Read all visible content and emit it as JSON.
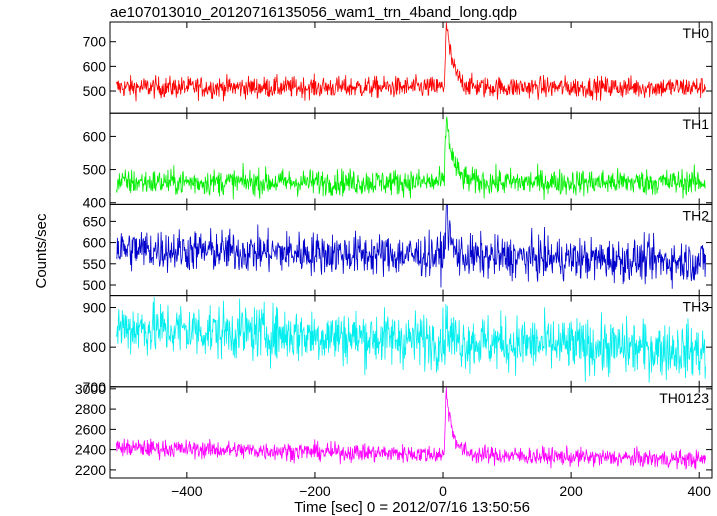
{
  "chart_data": {
    "type": "line",
    "title": "ae107013010_20120716135056_wam1_trn_4band_long.qdp",
    "xlabel": "Time [sec] 0 = 2012/07/16 13:50:56",
    "ylabel": "Counts/sec",
    "xlim": [
      -520,
      420
    ],
    "data_x_range": [
      -510,
      410
    ],
    "xticks": [
      -400,
      -200,
      0,
      200,
      400
    ],
    "grid": false,
    "legend": "none",
    "panels": [
      {
        "name": "TH0",
        "color": "#ff0000",
        "ylim": [
          410,
          780
        ],
        "yticks": [
          500,
          600,
          700
        ],
        "baseline": 515,
        "noise": 22,
        "peak": 780,
        "peak_time": 5,
        "decay_sec": 10
      },
      {
        "name": "TH1",
        "color": "#00ee00",
        "ylim": [
          395,
          670
        ],
        "yticks": [
          400,
          500,
          600
        ],
        "baseline": 462,
        "noise": 20,
        "peak": 665,
        "peak_time": 5,
        "decay_sec": 10
      },
      {
        "name": "TH2",
        "color": "#0000cc",
        "ylim": [
          475,
          690
        ],
        "yticks": [
          500,
          550,
          600,
          650
        ],
        "baseline_start": 585,
        "baseline_end": 555,
        "noise": 25,
        "peak": 690,
        "peak_time": 5,
        "decay_sec": 6
      },
      {
        "name": "TH3",
        "color": "#00eeee",
        "ylim": [
          700,
          930
        ],
        "yticks": [
          700,
          800,
          900
        ],
        "baseline_start": 850,
        "baseline_end": 790,
        "noise": 35,
        "peak": 860,
        "peak_time": 5,
        "decay_sec": 6
      },
      {
        "name": "TH0123",
        "color": "#ff00ff",
        "ylim": [
          2120,
          3020
        ],
        "yticks": [
          2200,
          2400,
          2600,
          2800,
          3000
        ],
        "baseline_start": 2420,
        "baseline_end": 2300,
        "noise": 45,
        "peak": 3000,
        "peak_time": 5,
        "decay_sec": 10
      }
    ]
  }
}
